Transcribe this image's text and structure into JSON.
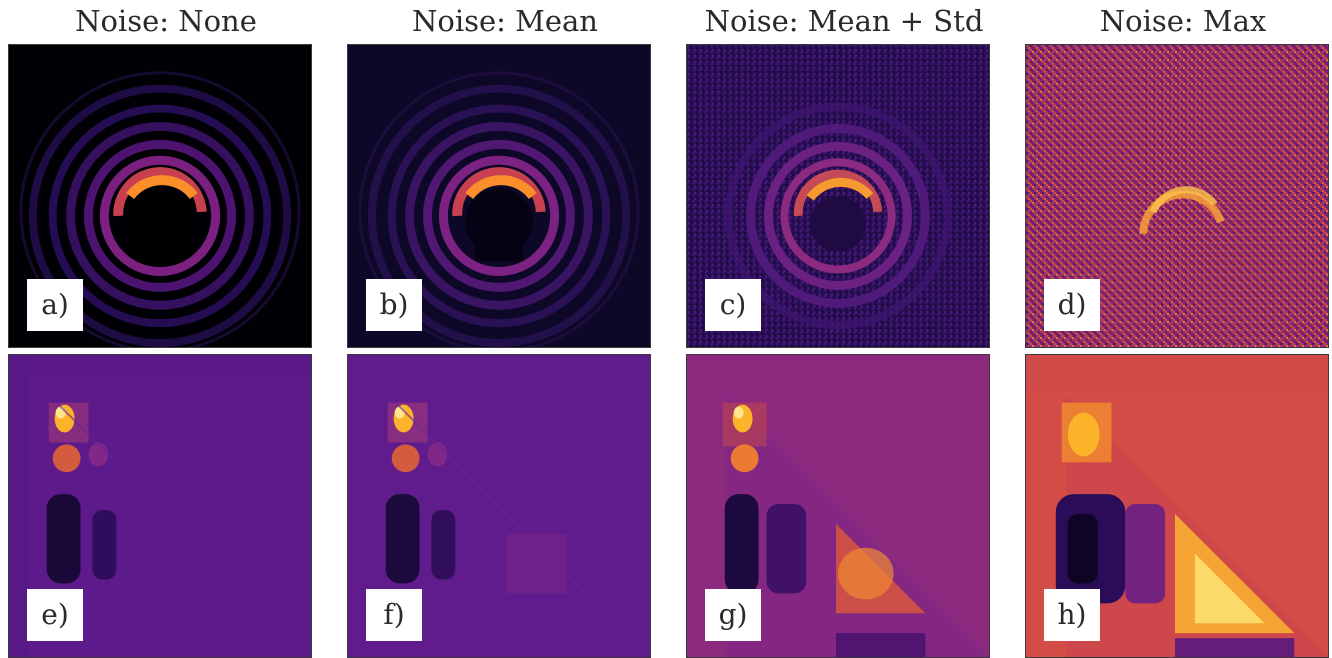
{
  "columns": [
    {
      "title": "Noise: None"
    },
    {
      "title": "Noise: Mean"
    },
    {
      "title": "Noise: Mean + Std"
    },
    {
      "title": "Noise: Max"
    }
  ],
  "panels": {
    "top": [
      {
        "label": "a)"
      },
      {
        "label": "b)"
      },
      {
        "label": "c)"
      },
      {
        "label": "d)"
      }
    ],
    "bottom": [
      {
        "label": "e)"
      },
      {
        "label": "f)"
      },
      {
        "label": "g)"
      },
      {
        "label": "h)"
      }
    ]
  },
  "colormap": "inferno",
  "colors": {
    "dark": "#0b0524",
    "purple": "#3b0f70",
    "magenta": "#8c2981",
    "red": "#dd513a",
    "orange": "#fca50a",
    "yellow": "#fcffa4"
  }
}
